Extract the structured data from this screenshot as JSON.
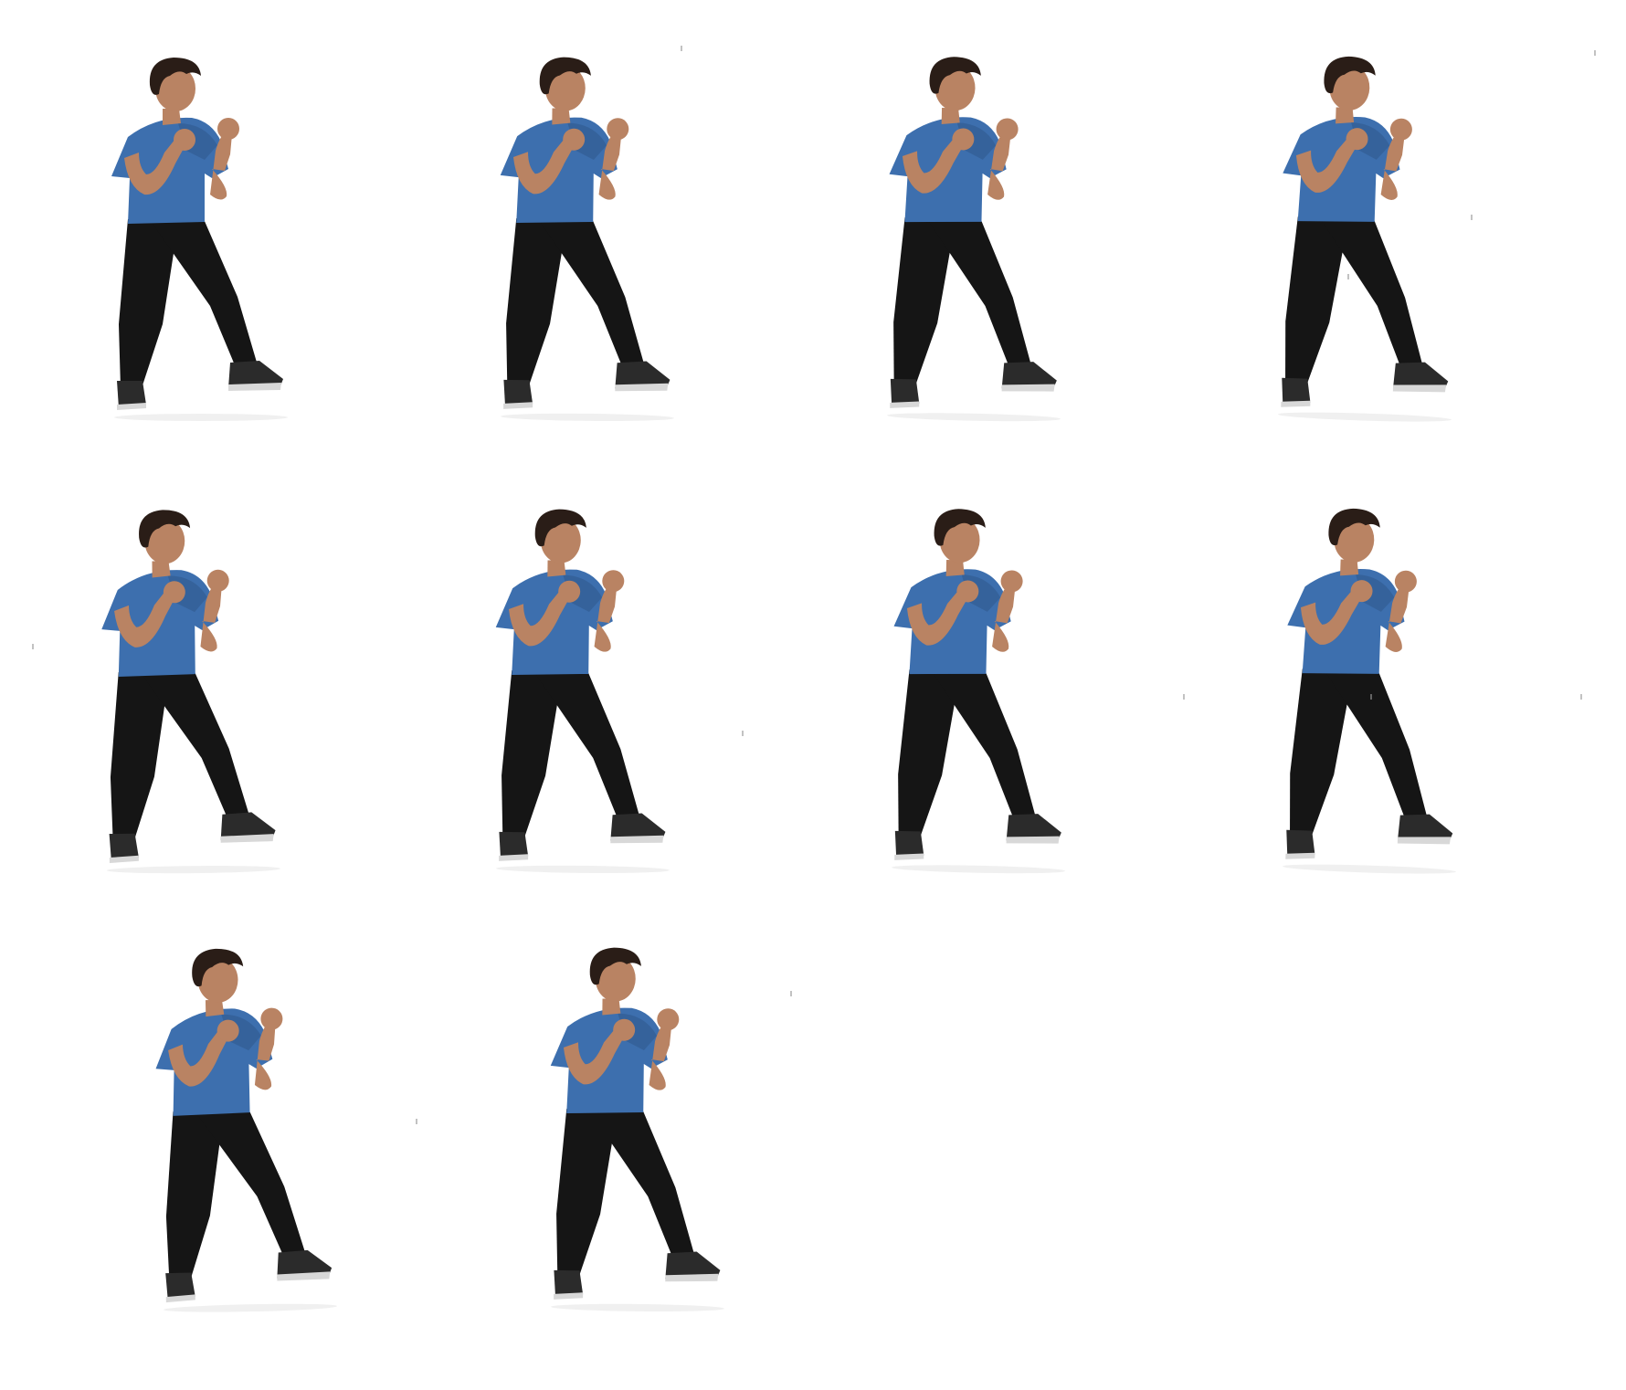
{
  "sheet": {
    "background": "#ffffff",
    "description_colors": {
      "shirt": "#3d6fae",
      "shirt_shadow": "#2d5588",
      "pants": "#151515",
      "skin": "#b98363",
      "hair": "#2a1d17",
      "shoe": "#2b2b2b",
      "sole": "#d8d8d8"
    },
    "frames": [
      {
        "id": 1,
        "pose": "guard-stance"
      },
      {
        "id": 2,
        "pose": "guard-stance"
      },
      {
        "id": 3,
        "pose": "guard-stance"
      },
      {
        "id": 4,
        "pose": "guard-stance"
      },
      {
        "id": 5,
        "pose": "guard-stance"
      },
      {
        "id": 6,
        "pose": "guard-stance"
      },
      {
        "id": 7,
        "pose": "guard-stance"
      },
      {
        "id": 8,
        "pose": "guard-stance"
      },
      {
        "id": 9,
        "pose": "guard-stance"
      },
      {
        "id": 10,
        "pose": "guard-stance"
      }
    ]
  }
}
